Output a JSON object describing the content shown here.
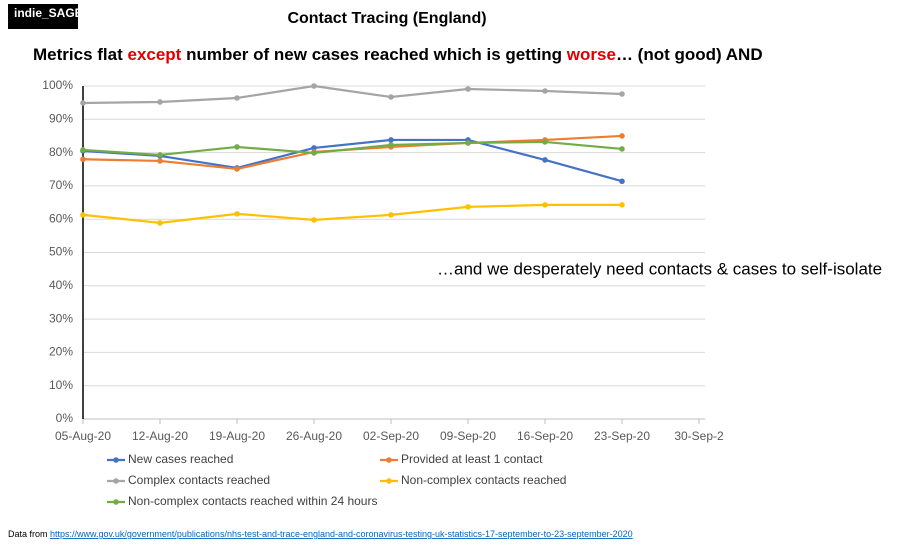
{
  "logo": "indie_SAGE",
  "chart_data": {
    "type": "line",
    "title": "Contact Tracing (England)",
    "subtitle_parts": [
      {
        "text": "Metrics flat ",
        "color": "#000000"
      },
      {
        "text": "except",
        "color": "#e00000"
      },
      {
        "text": " number of new cases reached which is getting ",
        "color": "#000000"
      },
      {
        "text": "worse",
        "color": "#e00000"
      },
      {
        "text": "… (not good) AND",
        "color": "#000000"
      }
    ],
    "annotation": "…and we desperately need contacts & cases to self-isolate",
    "categories": [
      "05-Aug-20",
      "12-Aug-20",
      "19-Aug-20",
      "26-Aug-20",
      "02-Sep-20",
      "09-Sep-20",
      "16-Sep-20",
      "23-Sep-20",
      "30-Sep-2"
    ],
    "series": [
      {
        "name": "New cases reached",
        "color": "#4472c4",
        "values": [
          80.5,
          79,
          75.4,
          81.4,
          83.8,
          83.8,
          77.8,
          71.4,
          null
        ]
      },
      {
        "name": "Provided at least 1 contact",
        "color": "#ed7d31",
        "values": [
          78,
          77.5,
          75.1,
          80.2,
          81.7,
          82.9,
          83.8,
          85,
          null
        ]
      },
      {
        "name": "Complex contacts reached",
        "color": "#a5a5a5",
        "values": [
          94.9,
          95.2,
          96.4,
          100,
          96.7,
          99.1,
          98.5,
          97.6,
          null
        ]
      },
      {
        "name": "Non-complex contacts reached",
        "color": "#ffc000",
        "values": [
          61.3,
          58.9,
          61.6,
          59.8,
          61.3,
          63.7,
          64.3,
          64.3,
          null
        ]
      },
      {
        "name": "Non-complex contacts reached within 24 hours",
        "color": "#70ad47",
        "values": [
          80.8,
          79.3,
          81.7,
          79.9,
          82.3,
          82.9,
          83.2,
          81.1,
          null
        ]
      }
    ],
    "ylim": [
      0,
      100
    ],
    "yticks": [
      {
        "value": 0,
        "label": "0%"
      },
      {
        "value": 10,
        "label": "10%"
      },
      {
        "value": 20,
        "label": "20%"
      },
      {
        "value": 30,
        "label": "30%"
      },
      {
        "value": 40,
        "label": "40%"
      },
      {
        "value": 50,
        "label": "50%"
      },
      {
        "value": 60,
        "label": "60%"
      },
      {
        "value": 70,
        "label": "70%"
      },
      {
        "value": 80,
        "label": "80%"
      },
      {
        "value": 90,
        "label": "90%"
      },
      {
        "value": 100,
        "label": "100%"
      }
    ],
    "grid": true
  },
  "footer": {
    "prefix": "Data from ",
    "link": "https://www.gov.uk/government/publications/nhs-test-and-trace-england-and-coronavirus-testing-uk-statistics-17-september-to-23-september-2020"
  }
}
